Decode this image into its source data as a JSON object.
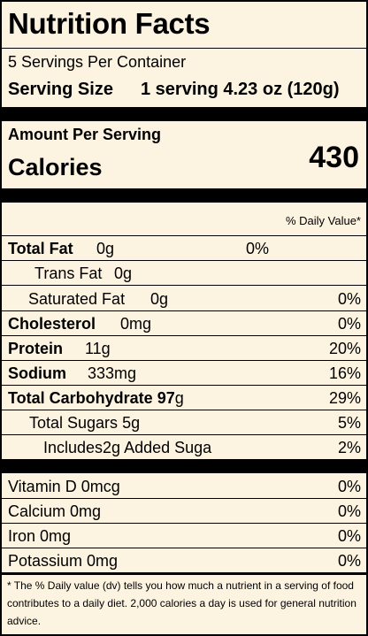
{
  "label": {
    "title": "Nutrition Facts",
    "servings_per_container": "5 Servings Per Container",
    "serving_size_label": "Serving Size",
    "serving_size_value": "1 serving 4.23 oz (120g)",
    "amount_per_serving": "Amount Per Serving",
    "calories_label": "Calories",
    "calories_value": "430",
    "daily_value_header": "% Daily Value*"
  },
  "nutrients": {
    "total_fat": {
      "name": "Total Fat",
      "amount": "0g",
      "dv": "0%"
    },
    "trans_fat": {
      "name": "Trans Fat",
      "amount": "0g"
    },
    "saturated_fat": {
      "name": "Saturated Fat",
      "amount": "0g",
      "dv": "0%"
    },
    "cholesterol": {
      "name": "Cholesterol",
      "amount": "0mg",
      "dv": "0%"
    },
    "protein": {
      "name": "Protein",
      "amount": "11g",
      "dv": "20%"
    },
    "sodium": {
      "name": "Sodium",
      "amount": "333mg",
      "dv": "16%"
    },
    "total_carbohydrate": {
      "name": "Total Carbohydrate",
      "amount_bold": "97",
      "amount_unit": "g",
      "dv": "29%"
    },
    "total_sugars": {
      "name": "Total Sugars",
      "amount": "5g",
      "dv": "5%"
    },
    "added_sugars": {
      "text": "Includes2g Added Suga",
      "dv": "2%"
    }
  },
  "vitamins": [
    {
      "text": "Vitamin D 0mcg",
      "dv": "0%"
    },
    {
      "text": "Calcium 0mg",
      "dv": "0%"
    },
    {
      "text": "Iron 0mg",
      "dv": "0%"
    },
    {
      "text": "Potassium 0mg",
      "dv": "0%"
    }
  ],
  "footnote": "* The % Daily value (dv) tells you how much a nutrient in a serving of food contributes to a daily diet. 2,000 calories a day is used for general nutrition advice.",
  "colors": {
    "background": "#fdf3e1",
    "ink": "#000000"
  }
}
